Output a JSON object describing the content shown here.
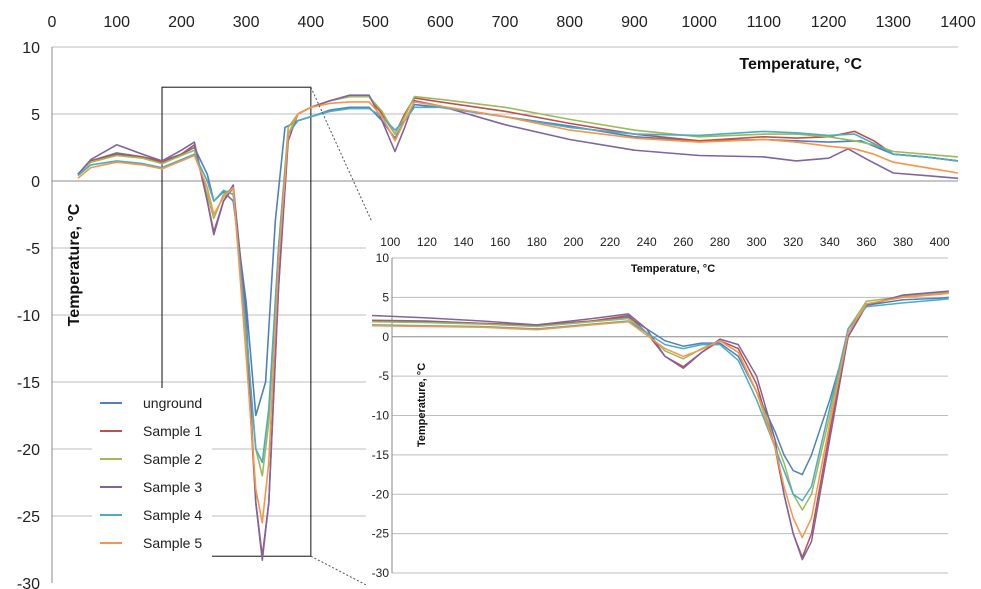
{
  "chart_data": [
    {
      "type": "line",
      "title": "",
      "xlabel": "Temperature, °C",
      "ylabel": "Temperature, °C",
      "xlim": [
        0,
        1400
      ],
      "ylim": [
        -30,
        10
      ],
      "xticks": [
        0,
        100,
        200,
        300,
        400,
        500,
        600,
        700,
        800,
        900,
        1000,
        1100,
        1200,
        1300,
        1400
      ],
      "xtick_labels": [
        "0",
        "100",
        "200",
        "300",
        "400",
        "500",
        "600",
        "700",
        "800",
        "900",
        "1000",
        "1100",
        "1200",
        "1300",
        "1400"
      ],
      "yticks": [
        -30,
        -25,
        -20,
        -15,
        -10,
        -5,
        0,
        5,
        10
      ],
      "ytick_labels": [
        "-30",
        "-25",
        "-20",
        "-15",
        "-10",
        "-5",
        "0",
        "5",
        "10"
      ],
      "grid": "horizontal",
      "legend_position": "lower-left",
      "zoom_region": {
        "x": [
          170,
          400
        ],
        "y": [
          -28,
          7
        ]
      },
      "series": [
        {
          "name": "unground",
          "color": "#4F81BD",
          "x": [
            40,
            60,
            100,
            140,
            170,
            200,
            220,
            240,
            250,
            265,
            280,
            300,
            315,
            330,
            345,
            360,
            380,
            400,
            430,
            460,
            490,
            510,
            530,
            545,
            560,
            600,
            700,
            800,
            900,
            1000,
            1100,
            1150,
            1200,
            1250,
            1300,
            1350,
            1400
          ],
          "y": [
            0.5,
            1.5,
            2.1,
            1.8,
            1.5,
            2.0,
            2.5,
            0.5,
            -1.5,
            -0.8,
            -1.5,
            -9,
            -17.5,
            -15,
            -3,
            4,
            4.5,
            4.8,
            5.3,
            5.5,
            5.5,
            4.5,
            3.2,
            4.5,
            5.7,
            5.5,
            4.8,
            4.1,
            3.3,
            3.0,
            3.1,
            3.0,
            2.9,
            3.0,
            2.0,
            1.8,
            1.5
          ]
        },
        {
          "name": "Sample 1",
          "color": "#C0504D",
          "x": [
            40,
            60,
            100,
            140,
            170,
            200,
            220,
            240,
            250,
            265,
            280,
            300,
            315,
            325,
            335,
            350,
            365,
            380,
            400,
            430,
            460,
            490,
            510,
            530,
            545,
            560,
            600,
            700,
            800,
            900,
            1000,
            1100,
            1150,
            1200,
            1240,
            1270,
            1300,
            1350,
            1400
          ],
          "y": [
            0.5,
            1.5,
            2.0,
            1.8,
            1.4,
            2.0,
            2.7,
            -1.5,
            -3.8,
            -1.5,
            -0.5,
            -12,
            -24,
            -28,
            -24,
            -8,
            3.5,
            5.0,
            5.5,
            6.0,
            6.3,
            6.3,
            5.0,
            3.5,
            5.0,
            6.2,
            5.9,
            5.2,
            4.3,
            3.5,
            3.0,
            3.3,
            3.2,
            3.3,
            3.7,
            3.0,
            2.0,
            1.8,
            1.5
          ]
        },
        {
          "name": "Sample 2",
          "color": "#9BBB59",
          "x": [
            40,
            60,
            100,
            140,
            170,
            200,
            220,
            240,
            250,
            265,
            280,
            300,
            315,
            325,
            335,
            350,
            365,
            380,
            400,
            430,
            460,
            490,
            510,
            530,
            545,
            560,
            600,
            700,
            800,
            900,
            1000,
            1100,
            1150,
            1200,
            1240,
            1270,
            1300,
            1350,
            1400
          ],
          "y": [
            0.5,
            1.4,
            1.9,
            1.7,
            1.3,
            1.9,
            2.3,
            -1.0,
            -2.8,
            -1.0,
            -0.5,
            -12,
            -20,
            -22,
            -18,
            -5,
            4.0,
            5.0,
            5.5,
            6.0,
            6.3,
            6.3,
            5.2,
            3.5,
            4.8,
            6.3,
            6.1,
            5.5,
            4.6,
            3.8,
            3.3,
            3.5,
            3.5,
            3.3,
            3.0,
            2.7,
            2.2,
            2.0,
            1.8
          ]
        },
        {
          "name": "Sample 3",
          "color": "#8064A2",
          "x": [
            40,
            60,
            100,
            140,
            170,
            200,
            220,
            240,
            250,
            265,
            280,
            300,
            315,
            325,
            335,
            350,
            365,
            380,
            400,
            430,
            460,
            490,
            510,
            530,
            545,
            560,
            600,
            700,
            800,
            900,
            1000,
            1100,
            1150,
            1200,
            1230,
            1260,
            1300,
            1350,
            1400
          ],
          "y": [
            0.5,
            1.6,
            2.7,
            2.0,
            1.5,
            2.3,
            2.9,
            -1.5,
            -4.0,
            -1.5,
            -0.3,
            -10,
            -24,
            -28.3,
            -24,
            -8,
            3.0,
            5.0,
            5.5,
            6.0,
            6.4,
            6.4,
            4.5,
            2.2,
            4.0,
            6.0,
            5.6,
            4.2,
            3.1,
            2.3,
            1.9,
            1.8,
            1.5,
            1.7,
            2.4,
            1.6,
            0.6,
            0.4,
            0.2
          ]
        },
        {
          "name": "Sample 4",
          "color": "#4BACC6",
          "x": [
            40,
            60,
            100,
            140,
            170,
            200,
            220,
            240,
            250,
            265,
            280,
            300,
            315,
            325,
            335,
            350,
            365,
            380,
            400,
            430,
            460,
            490,
            510,
            530,
            545,
            560,
            600,
            700,
            800,
            900,
            1000,
            1100,
            1150,
            1200,
            1240,
            1270,
            1300,
            1350,
            1400
          ],
          "y": [
            0.4,
            1.2,
            1.5,
            1.3,
            1.0,
            1.6,
            2.0,
            0.0,
            -1.5,
            -0.7,
            -1.0,
            -11,
            -20,
            -21,
            -17,
            -5,
            3.5,
            4.5,
            4.8,
            5.2,
            5.4,
            5.4,
            4.8,
            3.8,
            4.5,
            5.5,
            5.5,
            4.8,
            4.0,
            3.5,
            3.4,
            3.7,
            3.6,
            3.4,
            3.5,
            2.8,
            2.0,
            1.8,
            1.5
          ]
        },
        {
          "name": "Sample 5",
          "color": "#F79646",
          "x": [
            40,
            60,
            100,
            140,
            170,
            200,
            220,
            240,
            250,
            265,
            280,
            300,
            315,
            325,
            335,
            350,
            365,
            380,
            400,
            430,
            460,
            490,
            510,
            530,
            545,
            560,
            600,
            700,
            800,
            900,
            1000,
            1100,
            1150,
            1200,
            1240,
            1270,
            1300,
            1350,
            1400
          ],
          "y": [
            0.2,
            1.0,
            1.4,
            1.2,
            0.9,
            1.5,
            1.9,
            -0.5,
            -2.5,
            -1.2,
            -0.5,
            -13,
            -23,
            -25.5,
            -21,
            -6,
            3.5,
            5.0,
            5.5,
            5.8,
            5.9,
            5.9,
            4.8,
            3.0,
            4.5,
            5.9,
            5.6,
            4.8,
            3.8,
            3.2,
            2.9,
            3.1,
            2.9,
            2.6,
            2.4,
            2.0,
            1.4,
            1.0,
            0.6
          ]
        }
      ]
    },
    {
      "type": "line",
      "title": "",
      "xlabel": "Temperature, °C",
      "ylabel": "Temperature, °C",
      "xlim": [
        90,
        410
      ],
      "ylim": [
        -30,
        10
      ],
      "xticks": [
        100,
        120,
        140,
        160,
        180,
        200,
        220,
        240,
        260,
        280,
        300,
        320,
        340,
        360,
        380,
        400
      ],
      "xtick_labels": [
        "100",
        "120",
        "140",
        "160",
        "180",
        "200",
        "220",
        "240",
        "260",
        "280",
        "300",
        "320",
        "340",
        "360",
        "380",
        "400"
      ],
      "yticks": [
        -30,
        -25,
        -20,
        -15,
        -10,
        -5,
        0,
        5,
        10
      ],
      "ytick_labels": [
        "-30",
        "-25",
        "-20",
        "-15",
        "-10",
        "-5",
        "0",
        "5",
        "10"
      ],
      "grid": "horizontal",
      "series": [
        {
          "name": "unground",
          "color": "#4F81BD",
          "x": [
            90,
            120,
            150,
            180,
            210,
            230,
            240,
            250,
            260,
            270,
            280,
            290,
            300,
            310,
            315,
            320,
            325,
            330,
            340,
            350,
            360,
            380,
            400,
            405
          ],
          "y": [
            2.1,
            2.0,
            1.7,
            1.5,
            2.0,
            2.5,
            1.0,
            -0.5,
            -1.2,
            -0.8,
            -0.8,
            -2.5,
            -7,
            -12,
            -15,
            -17,
            -17.5,
            -15,
            -8,
            0,
            4,
            4.7,
            4.9,
            5.0
          ]
        },
        {
          "name": "Sample 1",
          "color": "#C0504D",
          "x": [
            90,
            120,
            150,
            180,
            210,
            230,
            240,
            250,
            260,
            270,
            280,
            290,
            300,
            310,
            315,
            320,
            325,
            330,
            340,
            350,
            360,
            380,
            400,
            405
          ],
          "y": [
            2.0,
            1.9,
            1.7,
            1.4,
            2.0,
            2.7,
            0.5,
            -2.5,
            -3.8,
            -2.0,
            -0.5,
            -1.5,
            -6,
            -14,
            -20,
            -25,
            -28,
            -25,
            -12,
            0,
            4,
            5.2,
            5.6,
            5.7
          ]
        },
        {
          "name": "Sample 2",
          "color": "#9BBB59",
          "x": [
            90,
            120,
            150,
            180,
            210,
            230,
            240,
            250,
            260,
            270,
            280,
            290,
            300,
            310,
            315,
            320,
            325,
            330,
            340,
            350,
            360,
            380,
            400,
            405
          ],
          "y": [
            1.9,
            1.8,
            1.6,
            1.3,
            1.9,
            2.3,
            0.5,
            -1.8,
            -2.8,
            -1.5,
            -0.5,
            -2,
            -7,
            -13,
            -16,
            -20,
            -22,
            -20,
            -10,
            1,
            4.5,
            5.1,
            5.5,
            5.6
          ]
        },
        {
          "name": "Sample 3",
          "color": "#8064A2",
          "x": [
            90,
            120,
            150,
            180,
            210,
            230,
            240,
            250,
            260,
            270,
            280,
            290,
            300,
            310,
            315,
            320,
            325,
            330,
            340,
            350,
            360,
            380,
            400,
            405
          ],
          "y": [
            2.7,
            2.4,
            2.0,
            1.5,
            2.3,
            2.9,
            1.0,
            -2.5,
            -4.0,
            -2.0,
            -0.3,
            -1,
            -5,
            -13,
            -20,
            -25,
            -28.3,
            -26,
            -13,
            0,
            4,
            5.3,
            5.7,
            5.8
          ]
        },
        {
          "name": "Sample 4",
          "color": "#4BACC6",
          "x": [
            90,
            120,
            150,
            180,
            210,
            230,
            240,
            250,
            260,
            270,
            280,
            290,
            300,
            310,
            315,
            320,
            325,
            330,
            340,
            350,
            360,
            380,
            400,
            405
          ],
          "y": [
            1.5,
            1.4,
            1.3,
            1.0,
            1.6,
            2.0,
            0.5,
            -1.0,
            -1.5,
            -1.0,
            -1.0,
            -3,
            -8,
            -14,
            -17,
            -20,
            -20.8,
            -19,
            -9,
            1,
            3.8,
            4.3,
            4.7,
            4.8
          ]
        },
        {
          "name": "Sample 5",
          "color": "#F79646",
          "x": [
            90,
            120,
            150,
            180,
            210,
            230,
            240,
            250,
            260,
            270,
            280,
            290,
            300,
            310,
            315,
            320,
            325,
            330,
            340,
            350,
            360,
            380,
            400,
            405
          ],
          "y": [
            1.4,
            1.3,
            1.2,
            0.9,
            1.5,
            1.9,
            0.2,
            -1.5,
            -2.5,
            -1.6,
            -0.5,
            -2,
            -7,
            -14,
            -19,
            -23,
            -25.5,
            -23,
            -11,
            0.5,
            4.2,
            5.0,
            5.4,
            5.5
          ]
        }
      ]
    }
  ]
}
